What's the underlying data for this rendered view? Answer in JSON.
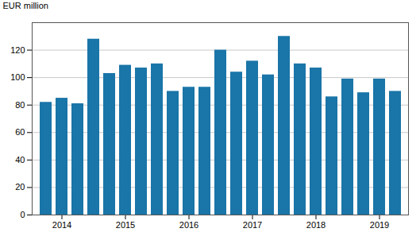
{
  "chart_data": {
    "type": "bar",
    "categories": [
      null,
      "2014",
      null,
      null,
      null,
      "2015",
      null,
      null,
      null,
      "2016",
      null,
      null,
      null,
      "2017",
      null,
      null,
      null,
      "2018",
      null,
      null,
      null,
      "2019",
      null
    ],
    "values": [
      82,
      85,
      81,
      128,
      103,
      109,
      107,
      110,
      90,
      93,
      93,
      120,
      104,
      112,
      102,
      130,
      110,
      107,
      86,
      99,
      89,
      99,
      90
    ],
    "color": "#1a75a8",
    "ylabel": "EUR million",
    "ylim": [
      0,
      140
    ],
    "yticks": [
      0,
      20,
      40,
      60,
      80,
      100,
      120
    ],
    "grid": true
  }
}
